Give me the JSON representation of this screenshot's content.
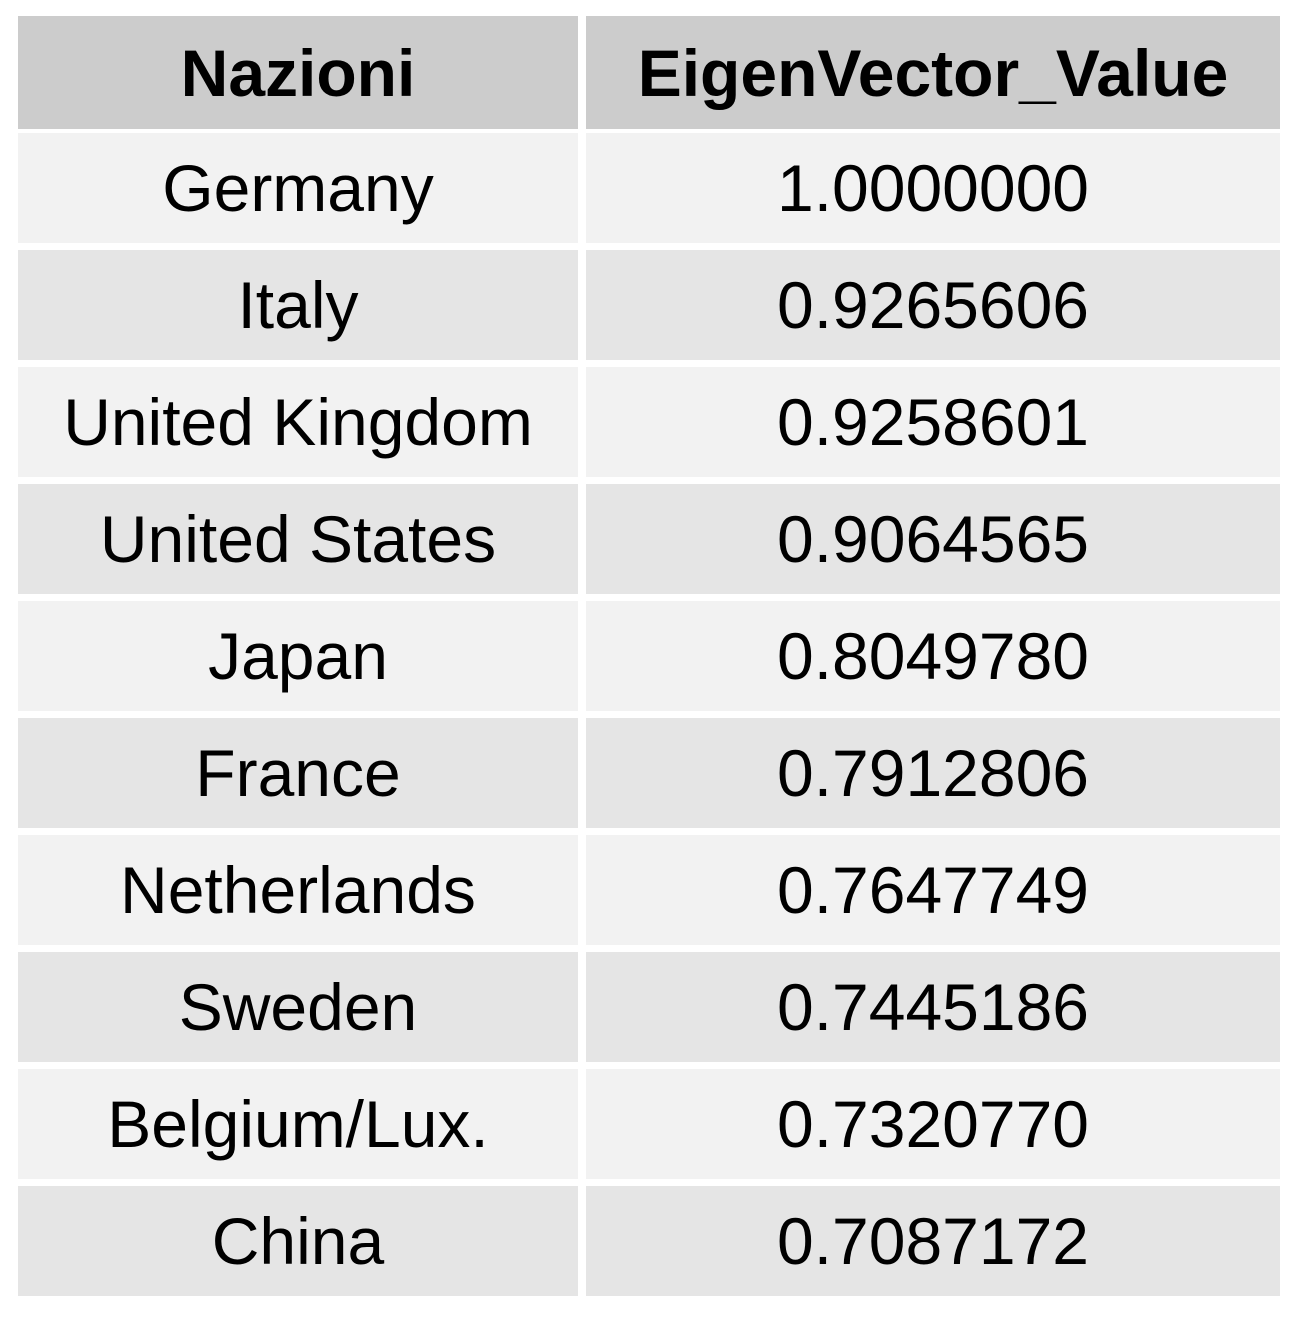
{
  "chart_data": {
    "type": "table",
    "columns": [
      "Nazioni",
      "EigenVector_Value"
    ],
    "rows": [
      [
        "Germany",
        "1.0000000"
      ],
      [
        "Italy",
        "0.9265606"
      ],
      [
        "United Kingdom",
        "0.9258601"
      ],
      [
        "United States",
        "0.9064565"
      ],
      [
        "Japan",
        "0.8049780"
      ],
      [
        "France",
        "0.7912806"
      ],
      [
        "Netherlands",
        "0.7647749"
      ],
      [
        "Sweden",
        "0.7445186"
      ],
      [
        "Belgium/Lux.",
        "0.7320770"
      ],
      [
        "China",
        "0.7087172"
      ]
    ]
  },
  "colors": {
    "header_bg": "#cccccc",
    "row_light": "#f2f2f2",
    "row_dark": "#e5e5e5",
    "text": "#000000"
  }
}
